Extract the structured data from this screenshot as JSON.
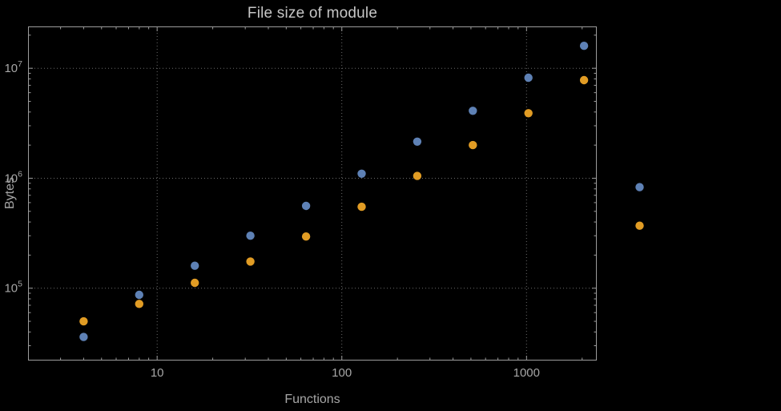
{
  "chart_data": {
    "type": "scatter",
    "title": "File size of module",
    "xlabel": "Functions",
    "ylabel": "Bytes",
    "x_scale": "log",
    "y_scale": "log",
    "xlim": [
      2,
      2400
    ],
    "ylim": [
      22000,
      24000000
    ],
    "grid": true,
    "grid_style": "dotted",
    "legend": "none",
    "clip": false,
    "x_ticks": [
      {
        "value": 10,
        "label": "10"
      },
      {
        "value": 100,
        "label": "100"
      },
      {
        "value": 1000,
        "label": "1000"
      }
    ],
    "y_ticks": [
      {
        "value": 100000,
        "mantissa": "10",
        "exponent": "5",
        "label": "10^5"
      },
      {
        "value": 1000000,
        "mantissa": "10",
        "exponent": "6",
        "label": "10^6"
      },
      {
        "value": 10000000,
        "mantissa": "10",
        "exponent": "7",
        "label": "10^7"
      }
    ],
    "x": [
      4,
      8,
      16,
      32,
      64,
      128,
      256,
      512,
      1024,
      2048,
      4096
    ],
    "series": [
      {
        "name": "blue-series",
        "color": "#5e81b5",
        "values": [
          36000,
          87000,
          160000,
          300000,
          560000,
          1100000,
          2150000,
          4100000,
          8200000,
          16000000,
          830000
        ]
      },
      {
        "name": "orange-series",
        "color": "#e19c24",
        "values": [
          50000,
          72000,
          112000,
          175000,
          295000,
          550000,
          1050000,
          2000000,
          3900000,
          7800000,
          370000
        ]
      }
    ],
    "style": {
      "background": "#000000",
      "frame_color": "#9c9c9c",
      "grid_color": "#6b6b6b",
      "label_color": "#a6a6a6",
      "title_color": "#c6c6c6"
    }
  }
}
